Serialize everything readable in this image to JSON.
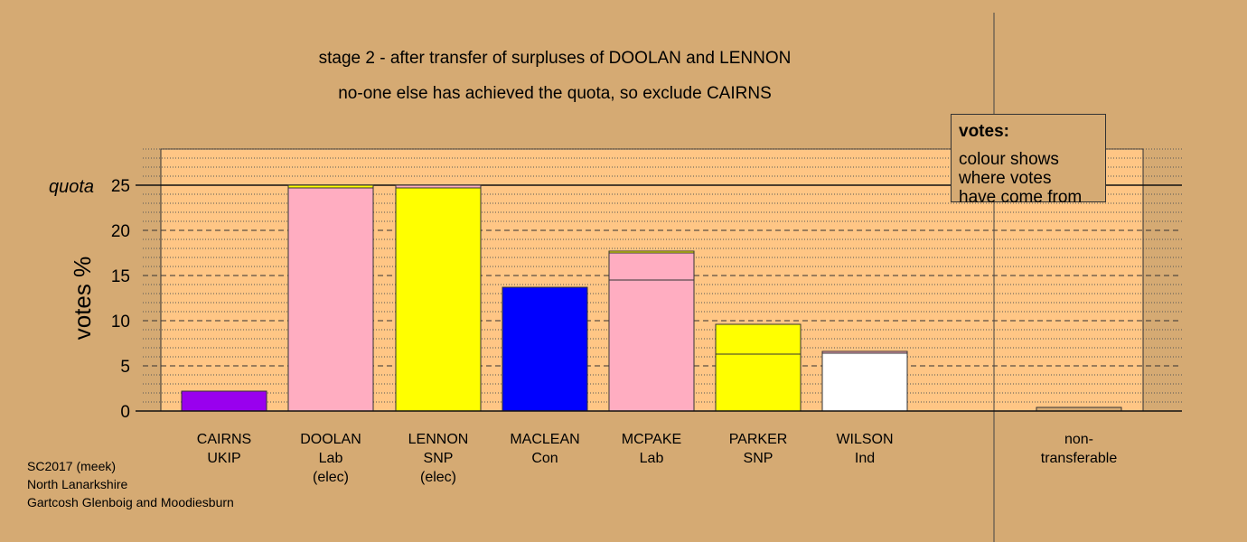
{
  "chart_data": {
    "type": "bar",
    "title": "stage 2 - after transfer of surpluses of DOOLAN and LENNON",
    "subtitle": "no-one else has achieved the quota, so exclude CAIRNS",
    "ylabel": "votes %",
    "ylim": [
      0,
      29
    ],
    "yticks": [
      0,
      5,
      10,
      15,
      20,
      25
    ],
    "quota": {
      "label": "quota",
      "value": 25
    },
    "candidates": [
      {
        "name": "CAIRNS",
        "party": "UKIP",
        "status": "",
        "segments": [
          {
            "value": 2.2,
            "color": "#9900ee"
          }
        ]
      },
      {
        "name": "DOOLAN",
        "party": "Lab",
        "status": "(elec)",
        "segments": [
          {
            "value": 24.7,
            "color": "#ffadc1"
          },
          {
            "value": 0.3,
            "color": "#ffff00"
          }
        ]
      },
      {
        "name": "LENNON",
        "party": "SNP",
        "status": "(elec)",
        "segments": [
          {
            "value": 24.7,
            "color": "#ffff00"
          },
          {
            "value": 0.3,
            "color": "#ffadc1"
          }
        ]
      },
      {
        "name": "MACLEAN",
        "party": "Con",
        "status": "",
        "segments": [
          {
            "value": 13.7,
            "color": "#0000ff"
          }
        ]
      },
      {
        "name": "MCPAKE",
        "party": "Lab",
        "status": "",
        "segments": [
          {
            "value": 14.5,
            "color": "#ffadc1"
          },
          {
            "value": 3.0,
            "color": "#ffadc1"
          },
          {
            "value": 0.2,
            "color": "#ffff00"
          }
        ]
      },
      {
        "name": "PARKER",
        "party": "SNP",
        "status": "",
        "segments": [
          {
            "value": 6.3,
            "color": "#ffff00"
          },
          {
            "value": 3.3,
            "color": "#ffff00"
          }
        ]
      },
      {
        "name": "WILSON",
        "party": "Ind",
        "status": "",
        "segments": [
          {
            "value": 6.4,
            "color": "#ffffff"
          },
          {
            "value": 0.2,
            "color": "#ffadc1"
          }
        ]
      }
    ],
    "nontransferable": {
      "label_line1": "non-",
      "label_line2": "transferable",
      "value": 0.4,
      "color": "#d5aa73"
    }
  },
  "legend": {
    "heading": "votes:",
    "line1": "colour shows",
    "line2": "where votes",
    "line3": "have come from"
  },
  "footnote": {
    "line1": "SC2017 (meek)",
    "line2": "North Lanarkshire",
    "line3": "Gartcosh Glenboig and Moodiesburn"
  },
  "colors": {
    "background": "#d5aa73",
    "plot_area": "#ffc685"
  }
}
